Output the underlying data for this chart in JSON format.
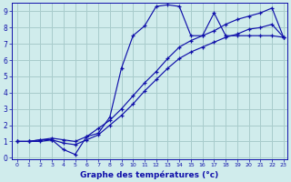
{
  "title": "Graphe des températures (°c)",
  "bg_color": "#d0ecec",
  "grid_color": "#a8cccc",
  "line_color": "#1010aa",
  "xlim": [
    0,
    23
  ],
  "ylim": [
    0,
    9
  ],
  "xticks": [
    0,
    1,
    2,
    3,
    4,
    5,
    6,
    7,
    8,
    9,
    10,
    11,
    12,
    13,
    14,
    15,
    16,
    17,
    18,
    19,
    20,
    21,
    22,
    23
  ],
  "yticks": [
    0,
    1,
    2,
    3,
    4,
    5,
    6,
    7,
    8,
    9
  ],
  "curve1_x": [
    0,
    1,
    2,
    3,
    4,
    5,
    6,
    7,
    8,
    9,
    10,
    11,
    12,
    13,
    14,
    15,
    16,
    17,
    18,
    19,
    20,
    21,
    22,
    23
  ],
  "curve1_y": [
    1.0,
    1.0,
    1.1,
    1.1,
    0.5,
    0.2,
    1.3,
    1.5,
    2.5,
    5.5,
    7.5,
    8.1,
    9.3,
    9.4,
    9.3,
    7.5,
    7.5,
    8.9,
    7.5,
    7.5,
    7.5,
    7.5,
    7.5,
    7.4
  ],
  "curve2_x": [
    0,
    1,
    2,
    3,
    4,
    5,
    6,
    7,
    8,
    9,
    10,
    11,
    12,
    13,
    14,
    15,
    16,
    17,
    18,
    19,
    20,
    21,
    22,
    23
  ],
  "curve2_y": [
    1.0,
    1.0,
    1.1,
    1.2,
    1.1,
    1.0,
    1.3,
    1.8,
    2.3,
    3.0,
    3.8,
    4.6,
    5.3,
    6.1,
    6.8,
    7.2,
    7.5,
    7.8,
    8.2,
    8.5,
    8.7,
    8.9,
    9.2,
    7.4
  ],
  "curve3_x": [
    0,
    1,
    2,
    3,
    4,
    5,
    6,
    7,
    8,
    9,
    10,
    11,
    12,
    13,
    14,
    15,
    16,
    17,
    18,
    19,
    20,
    21,
    22,
    23
  ],
  "curve3_y": [
    1.0,
    1.0,
    1.0,
    1.1,
    0.9,
    0.8,
    1.1,
    1.4,
    2.0,
    2.6,
    3.3,
    4.1,
    4.8,
    5.5,
    6.1,
    6.5,
    6.8,
    7.1,
    7.4,
    7.6,
    7.9,
    8.0,
    8.2,
    7.4
  ]
}
